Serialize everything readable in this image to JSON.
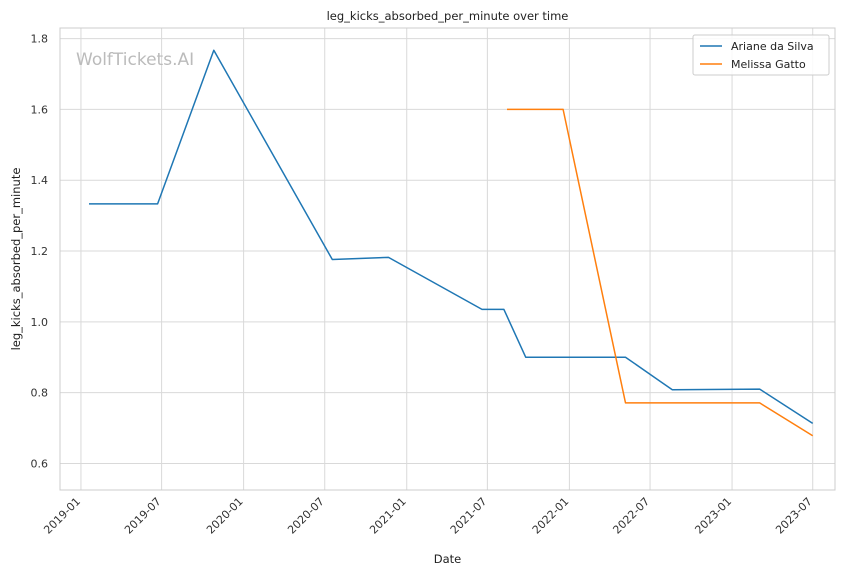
{
  "chart_data": {
    "type": "line",
    "title": "leg_kicks_absorbed_per_minute over time",
    "xlabel": "Date",
    "ylabel": "leg_kicks_absorbed_per_minute",
    "watermark": "WolfTickets.AI",
    "x_ticks": [
      "2019-01",
      "2019-07",
      "2020-01",
      "2020-07",
      "2021-01",
      "2021-07",
      "2022-01",
      "2022-07",
      "2023-01",
      "2023-07"
    ],
    "y_ticks": [
      "0.6",
      "0.8",
      "1.0",
      "1.2",
      "1.4",
      "1.6",
      "1.8"
    ],
    "xlim": [
      "2018-11-15",
      "2023-08-20"
    ],
    "ylim": [
      0.525,
      1.83
    ],
    "grid": true,
    "legend_position": "top-right",
    "series": [
      {
        "name": "Ariane da Silva",
        "color": "#1f77b4",
        "points": [
          {
            "x": "2019-01-19",
            "y": 1.333
          },
          {
            "x": "2019-06-22",
            "y": 1.333
          },
          {
            "x": "2019-10-26",
            "y": 1.767
          },
          {
            "x": "2020-07-18",
            "y": 1.176
          },
          {
            "x": "2020-11-21",
            "y": 1.182
          },
          {
            "x": "2021-06-19",
            "y": 1.035
          },
          {
            "x": "2021-08-07",
            "y": 1.035
          },
          {
            "x": "2021-09-25",
            "y": 0.9
          },
          {
            "x": "2022-05-07",
            "y": 0.9
          },
          {
            "x": "2022-08-20",
            "y": 0.808
          },
          {
            "x": "2023-03-04",
            "y": 0.81
          },
          {
            "x": "2023-07-01",
            "y": 0.713
          }
        ]
      },
      {
        "name": "Melissa Gatto",
        "color": "#ff7f0e",
        "points": [
          {
            "x": "2021-08-14",
            "y": 1.6
          },
          {
            "x": "2021-12-18",
            "y": 1.6
          },
          {
            "x": "2022-05-07",
            "y": 0.771
          },
          {
            "x": "2023-03-04",
            "y": 0.771
          },
          {
            "x": "2023-07-01",
            "y": 0.678
          }
        ]
      }
    ]
  }
}
